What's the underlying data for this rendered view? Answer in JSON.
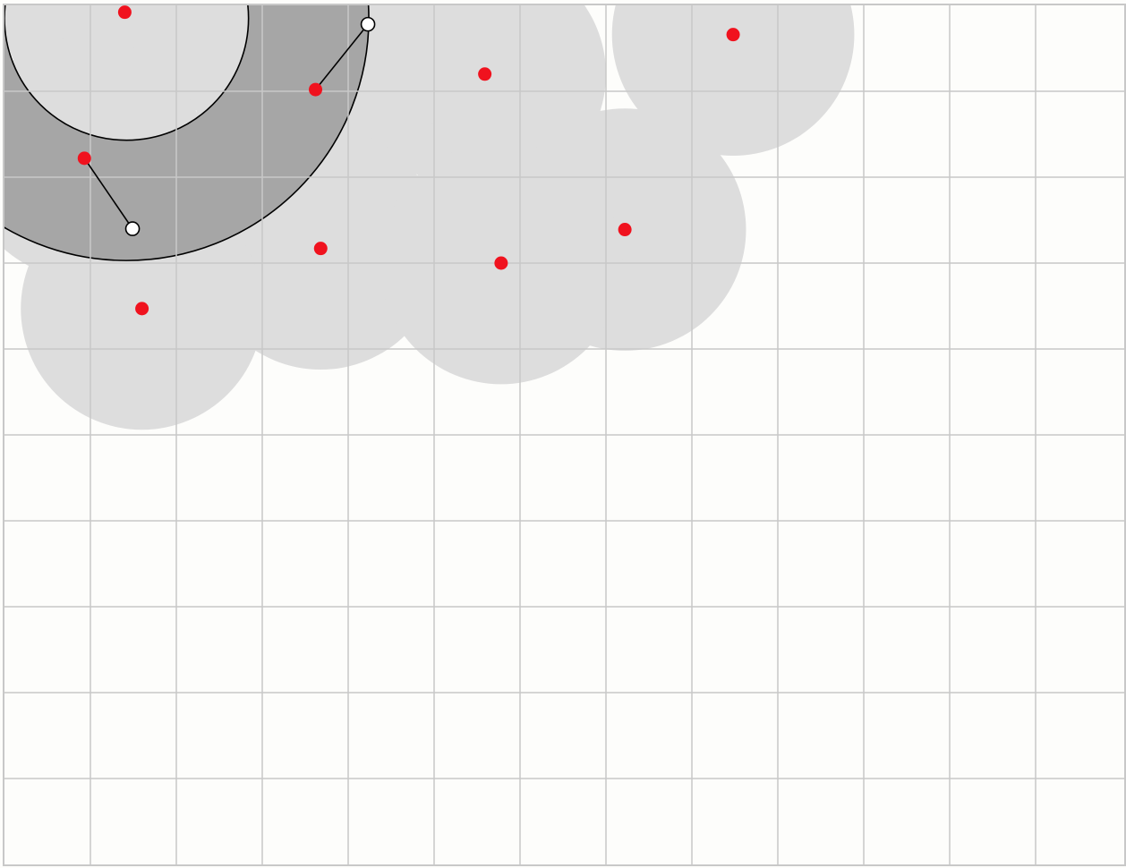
{
  "canvas": {
    "background": "#fdfdfb",
    "grid_color": "#c8c8c8",
    "border_color": "#c8c8c8",
    "coverage_color": "#dddddd",
    "annulus_color": "#a6a6a6",
    "point_color": "#f0121e",
    "handle_fill": "#ffffff",
    "stroke_color": "#000000"
  },
  "points": [
    {
      "id": "p1",
      "x": 1.4,
      "y": 0.08
    },
    {
      "id": "p2",
      "x": 8.48,
      "y": 0.34
    },
    {
      "id": "p3",
      "x": 5.59,
      "y": 0.8
    },
    {
      "id": "p4",
      "x": 3.62,
      "y": 0.98
    },
    {
      "id": "p5",
      "x": 0.93,
      "y": 1.78
    },
    {
      "id": "p6",
      "x": 7.22,
      "y": 2.61
    },
    {
      "id": "p7",
      "x": 3.68,
      "y": 2.83
    },
    {
      "id": "p8",
      "x": 5.78,
      "y": 3.0
    },
    {
      "id": "p9",
      "x": 1.6,
      "y": 3.53
    }
  ],
  "coverage_radius": 1.41,
  "annulus": {
    "center": {
      "x": 1.42,
      "y": 0.15
    },
    "inner_radius": 1.42,
    "outer_radius": 2.82
  },
  "handles": [
    {
      "id": "h1",
      "x": 4.23,
      "y": 0.22,
      "linked_point": "p4"
    },
    {
      "id": "h2",
      "x": 1.49,
      "y": 2.6,
      "linked_point": "p5"
    }
  ]
}
